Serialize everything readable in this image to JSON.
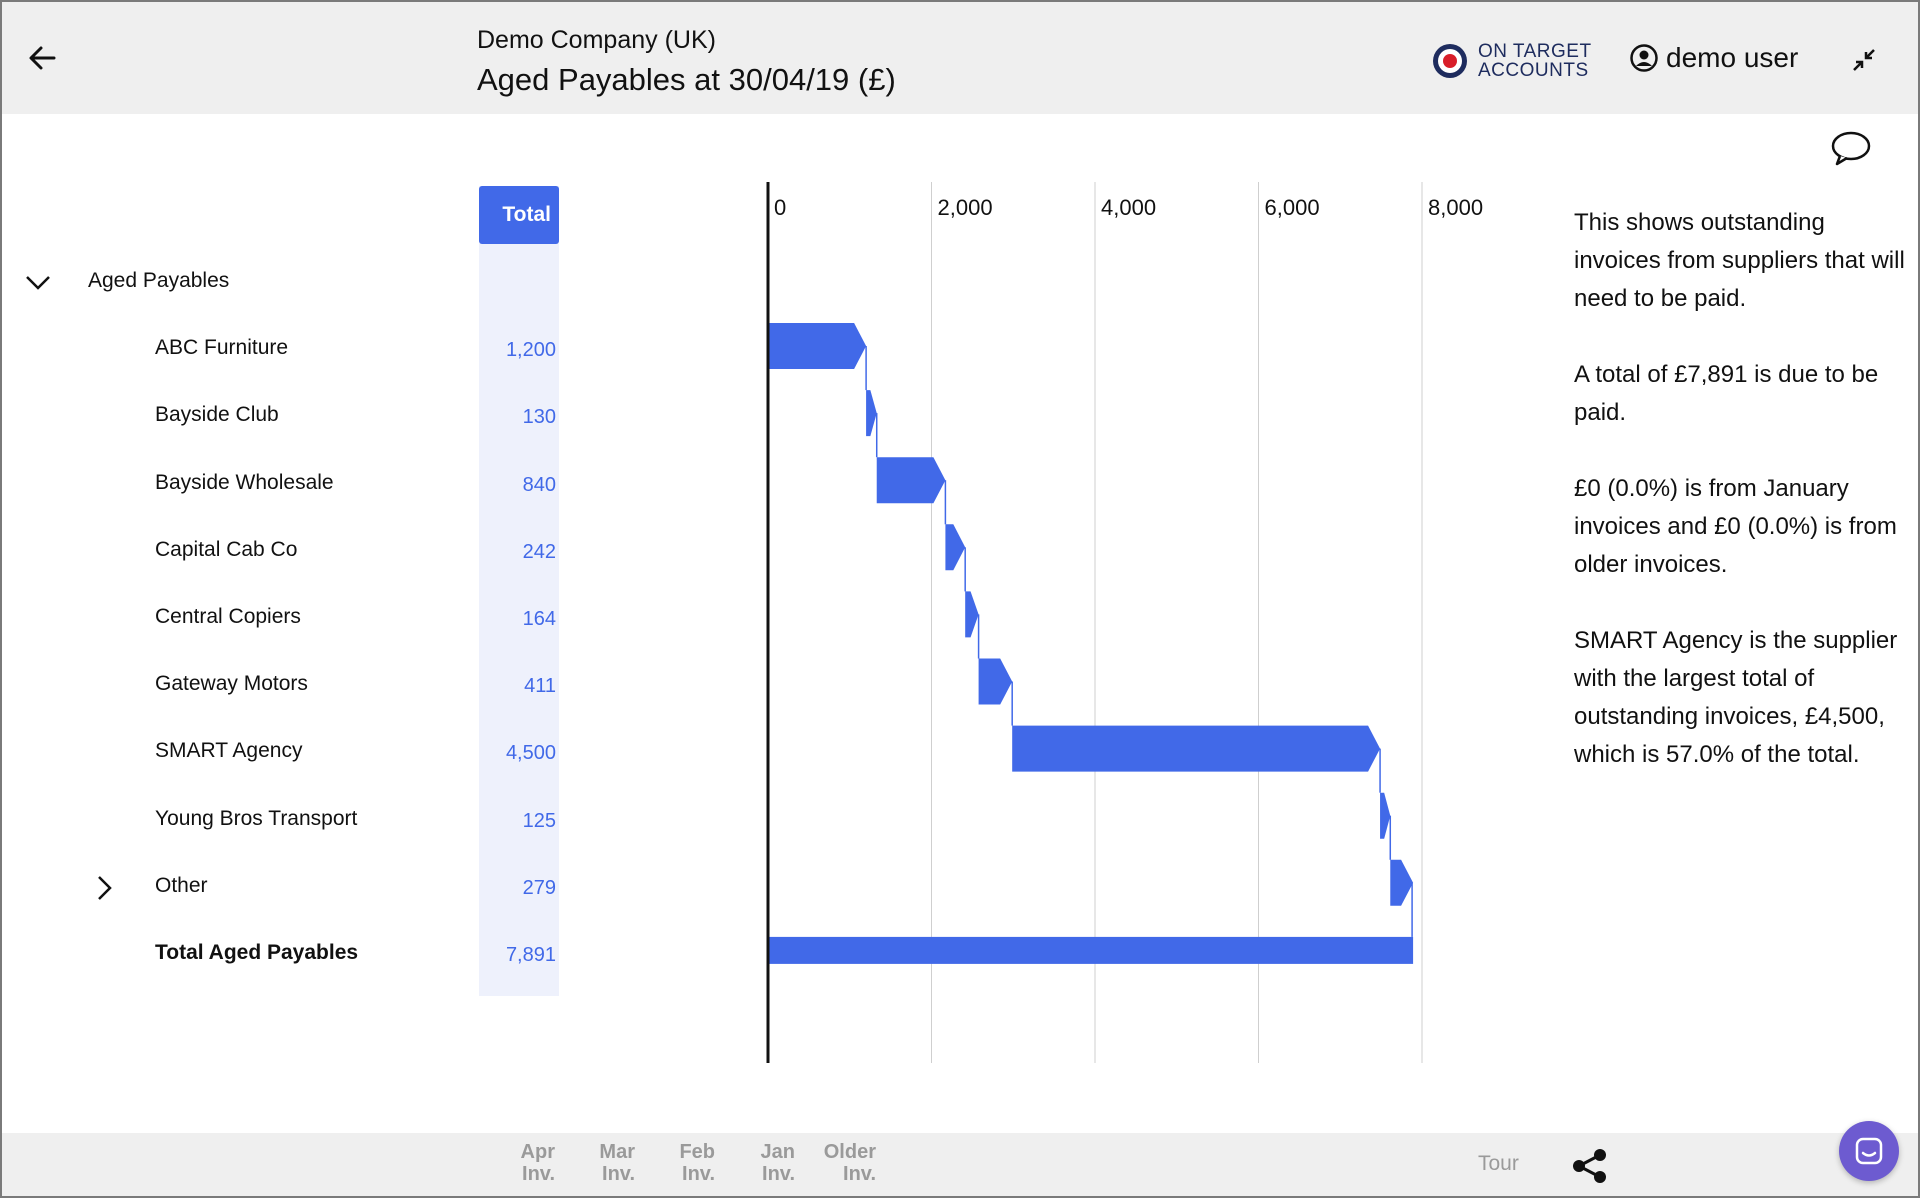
{
  "header": {
    "company": "Demo Company (UK)",
    "title": "Aged Payables at 30/04/19 (£)",
    "brand_line1": "ON TARGET",
    "brand_line2": "ACCOUNTS",
    "user": "demo user"
  },
  "table": {
    "column_header": "Total",
    "group_label": "Aged Payables",
    "rows": [
      {
        "label": "ABC Furniture",
        "value": "1,200"
      },
      {
        "label": "Bayside Club",
        "value": "130"
      },
      {
        "label": "Bayside Wholesale",
        "value": "840"
      },
      {
        "label": "Capital Cab Co",
        "value": "242"
      },
      {
        "label": "Central Copiers",
        "value": "164"
      },
      {
        "label": "Gateway Motors",
        "value": "411"
      },
      {
        "label": "SMART Agency",
        "value": "4,500"
      },
      {
        "label": "Young Bros Transport",
        "value": "125"
      },
      {
        "label": "Other",
        "value": "279"
      }
    ],
    "total": {
      "label": "Total Aged Payables",
      "value": "7,891"
    }
  },
  "chart_data": {
    "type": "bar",
    "subtype": "waterfall",
    "categories": [
      "ABC Furniture",
      "Bayside Club",
      "Bayside Wholesale",
      "Capital Cab Co",
      "Central Copiers",
      "Gateway Motors",
      "SMART Agency",
      "Young Bros Transport",
      "Other",
      "Total Aged Payables"
    ],
    "values": [
      1200,
      130,
      840,
      242,
      164,
      411,
      4500,
      125,
      279,
      7891
    ],
    "xlim": [
      0,
      8000
    ],
    "tick_labels": [
      "0",
      "2,000",
      "4,000",
      "6,000",
      "8,000"
    ],
    "tick_values": [
      0,
      2000,
      4000,
      6000,
      8000
    ],
    "grid": true,
    "color": "#4169e8"
  },
  "commentary": [
    "This shows outstanding invoices from suppliers that will need to be paid.",
    "A total of £7,891 is due to be paid.",
    "£0 (0.0%) is from January invoices and £0 (0.0%) is from older invoices.",
    "SMART Agency is the supplier with the largest total of outstanding invoices, £4,500, which is 57.0% of the total."
  ],
  "footer": {
    "tabs": [
      {
        "line1": "Apr",
        "line2": "Inv."
      },
      {
        "line1": "Mar",
        "line2": "Inv."
      },
      {
        "line1": "Feb",
        "line2": "Inv."
      },
      {
        "line1": "Jan",
        "line2": "Inv."
      },
      {
        "line1": "Older",
        "line2": "Inv."
      }
    ],
    "tour": "Tour"
  },
  "icons": {
    "back": "arrow-left-icon",
    "target": "target-roundel-icon",
    "user": "user-circle-icon",
    "collapse": "collapse-arrows-icon",
    "comment": "speech-bubble-icon",
    "expanded": "chevron-down-icon",
    "collapsed": "chevron-right-icon",
    "share": "share-icon",
    "chat": "chat-icon"
  }
}
